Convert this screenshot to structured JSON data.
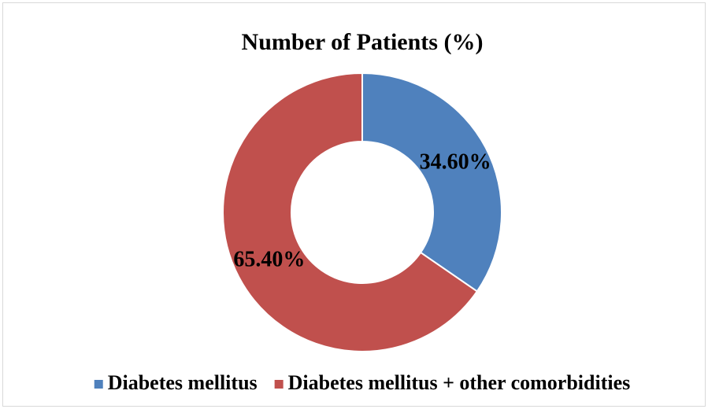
{
  "chart_data": {
    "type": "donut",
    "title": "Number of Patients (%)",
    "categories": [
      "Diabetes mellitus",
      "Diabetes mellitus + other comorbidities"
    ],
    "values": [
      34.6,
      65.4
    ],
    "value_labels": [
      "34.60%",
      "65.40%"
    ],
    "colors": [
      "#4f81bd",
      "#c0504d"
    ]
  }
}
